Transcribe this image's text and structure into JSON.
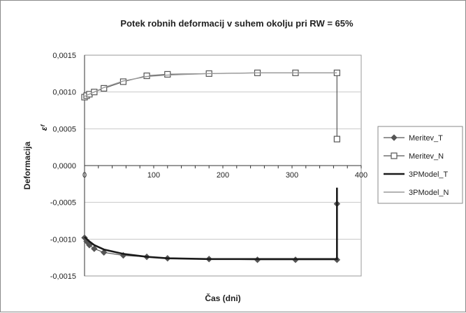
{
  "chart_data": {
    "type": "line",
    "title": "Potek robnih deformacij v suhem okolju pri RW = 65%",
    "xlabel": "Čas (dni)",
    "ylabel": "Deformacija",
    "ylabel_symbol": "εᶠ",
    "xlim": [
      0,
      400
    ],
    "ylim": [
      -0.0015,
      0.0015
    ],
    "x_ticks": [
      "0",
      "100",
      "200",
      "300",
      "400"
    ],
    "y_ticks": [
      "0,0015",
      "0,0010",
      "0,0005",
      "0,0000",
      "-0,0005",
      "-0,0010",
      "-0,0015"
    ],
    "grid": "horizontal",
    "legend_position": "right",
    "series": [
      {
        "name": "Meritev_T",
        "x": [
          0,
          3,
          7,
          14,
          28,
          56,
          90,
          120,
          180,
          250,
          305,
          365,
          365
        ],
        "y": [
          -0.00098,
          -0.00103,
          -0.00108,
          -0.00113,
          -0.00118,
          -0.00122,
          -0.00124,
          -0.00126,
          -0.00127,
          -0.00128,
          -0.00128,
          -0.00128,
          -0.00052
        ],
        "marker": "diamond",
        "color": "#555555"
      },
      {
        "name": "Meritev_N",
        "x": [
          0,
          3,
          7,
          14,
          28,
          56,
          90,
          120,
          180,
          250,
          305,
          365,
          365
        ],
        "y": [
          0.00093,
          0.00095,
          0.00097,
          0.001,
          0.00105,
          0.00114,
          0.00122,
          0.00124,
          0.00125,
          0.00126,
          0.00126,
          0.00126,
          0.00036
        ],
        "marker": "square-open",
        "color": "#555555"
      },
      {
        "name": "3PModel_T",
        "x": [
          0,
          7,
          14,
          28,
          56,
          90,
          120,
          180,
          250,
          305,
          365,
          365,
          365
        ],
        "y": [
          -0.00097,
          -0.00103,
          -0.00108,
          -0.00114,
          -0.0012,
          -0.00124,
          -0.00126,
          -0.00127,
          -0.00127,
          -0.00127,
          -0.00127,
          -0.00127,
          -0.0003
        ],
        "marker": "none",
        "color": "#1a1a1a"
      },
      {
        "name": "3PModel_N",
        "x": [
          0,
          7,
          14,
          28,
          56,
          90,
          120,
          180,
          250,
          305,
          365
        ],
        "y": [
          0.00094,
          0.00097,
          0.001,
          0.00106,
          0.00115,
          0.00121,
          0.00123,
          0.00125,
          0.00126,
          0.00126,
          0.00126
        ],
        "marker": "none",
        "color": "#9a9a9a"
      }
    ]
  }
}
